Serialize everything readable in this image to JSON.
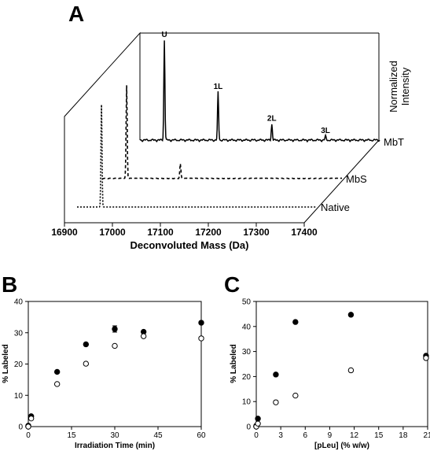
{
  "panels": {
    "a": {
      "letter": "A"
    },
    "b": {
      "letter": "B"
    },
    "c": {
      "letter": "C"
    }
  },
  "chart_data": [
    {
      "type": "line",
      "panel": "A",
      "xlabel": "Deconvoluted Mass (Da)",
      "zlabel_line1": "Normalized",
      "zlabel_line2": "Intensity",
      "xlim": [
        16900,
        17400
      ],
      "xticks": [
        16900,
        17000,
        17100,
        17200,
        17300,
        17400
      ],
      "series": [
        {
          "name": "MbT",
          "style": "solid",
          "peaks": [
            {
              "mass": 16951,
              "height": 1.0,
              "label": "U"
            },
            {
              "mass": 17063,
              "height": 0.48,
              "label": "1L"
            },
            {
              "mass": 17175,
              "height": 0.16,
              "label": "2L"
            },
            {
              "mass": 17287,
              "height": 0.04,
              "label": "3L"
            }
          ]
        },
        {
          "name": "MbS",
          "style": "dashed",
          "peaks": [
            {
              "mass": 16951,
              "height": 0.96
            },
            {
              "mass": 17063,
              "height": 0.15
            }
          ]
        },
        {
          "name": "Native",
          "style": "dotted",
          "peaks": [
            {
              "mass": 16951,
              "height": 1.0
            }
          ]
        }
      ]
    },
    {
      "type": "scatter",
      "panel": "B",
      "xlabel": "Irradiation Time (min)",
      "ylabel": "% Labeled",
      "xlim": [
        0,
        60
      ],
      "ylim": [
        0,
        40
      ],
      "xticks": [
        0,
        15,
        30,
        45,
        60
      ],
      "yticks": [
        0,
        10,
        20,
        30,
        40
      ],
      "series": [
        {
          "marker": "filled",
          "x": [
            0,
            1,
            10,
            20,
            30,
            40,
            60
          ],
          "y": [
            0.3,
            3.3,
            17.5,
            26.3,
            31.2,
            30.3,
            33.2
          ],
          "err": [
            0,
            0,
            0,
            0,
            1.0,
            0,
            0
          ]
        },
        {
          "marker": "open",
          "x": [
            0,
            1,
            10,
            20,
            30,
            40,
            60
          ],
          "y": [
            0.0,
            2.6,
            13.6,
            20.1,
            25.8,
            28.9,
            28.2
          ]
        }
      ]
    },
    {
      "type": "scatter",
      "panel": "C",
      "xlabel": "[pLeu] (% w/w)",
      "ylabel": "% Labeled",
      "xlim": [
        0,
        21
      ],
      "ylim": [
        0,
        50
      ],
      "xticks": [
        0,
        3,
        6,
        9,
        12,
        15,
        18,
        21
      ],
      "yticks": [
        0,
        10,
        20,
        30,
        40,
        50
      ],
      "series": [
        {
          "marker": "filled",
          "x": [
            0,
            0.2,
            2.4,
            4.8,
            11.6,
            20.8
          ],
          "y": [
            0.3,
            3.2,
            20.8,
            41.8,
            44.7,
            28.3
          ]
        },
        {
          "marker": "open",
          "x": [
            0,
            0.2,
            2.4,
            4.8,
            11.6,
            20.8
          ],
          "y": [
            0.0,
            1.2,
            9.7,
            12.4,
            22.5,
            27.4
          ]
        }
      ]
    }
  ]
}
